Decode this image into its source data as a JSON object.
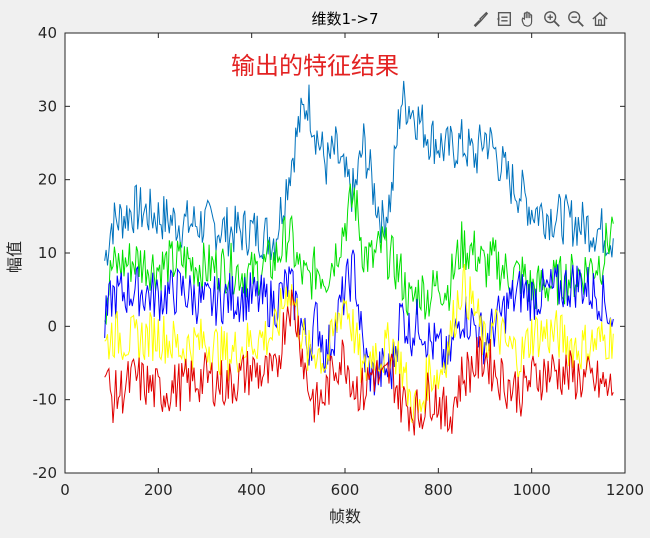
{
  "toolbar": {
    "icons": [
      "brush-icon",
      "data-tips-icon",
      "pan-icon",
      "zoom-in-icon",
      "zoom-out-icon",
      "home-icon"
    ]
  },
  "chart_data": {
    "type": "line",
    "title": "维数1->7",
    "annotation": "输出的特征结果",
    "xlabel": "帧数",
    "ylabel": "幅值",
    "xlim": [
      0,
      1200
    ],
    "ylim": [
      -20,
      40
    ],
    "xticks": [
      0,
      200,
      400,
      600,
      800,
      1000,
      1200
    ],
    "yticks": [
      -20,
      -10,
      0,
      10,
      20,
      30,
      40
    ],
    "grid": false,
    "legend": "none",
    "series": [
      {
        "color": "#0072bd",
        "x": [
          85,
          100,
          150,
          200,
          250,
          300,
          350,
          400,
          450,
          480,
          500,
          520,
          540,
          560,
          580,
          600,
          620,
          640,
          660,
          680,
          700,
          720,
          740,
          760,
          780,
          800,
          820,
          850,
          880,
          900,
          920,
          950,
          980,
          1000,
          1050,
          1100,
          1150,
          1175
        ],
        "y": [
          9,
          14,
          16,
          15,
          14,
          14,
          13,
          13,
          12,
          21,
          27,
          31,
          26,
          22,
          24,
          20,
          18,
          25,
          19,
          14,
          18,
          31,
          30,
          28,
          26,
          25,
          24,
          25,
          23,
          26,
          24,
          20,
          18,
          16,
          15,
          14,
          13,
          12
        ]
      },
      {
        "color": "#00e000",
        "x": [
          85,
          100,
          150,
          200,
          250,
          300,
          350,
          400,
          450,
          480,
          500,
          520,
          540,
          560,
          580,
          600,
          620,
          640,
          660,
          680,
          700,
          720,
          740,
          760,
          780,
          800,
          820,
          850,
          880,
          900,
          920,
          950,
          980,
          1000,
          1050,
          1100,
          1150,
          1175
        ],
        "y": [
          2,
          8,
          9,
          8,
          9,
          8,
          8,
          7,
          9,
          13,
          8,
          6,
          8,
          7,
          10,
          14,
          18,
          10,
          9,
          11,
          9,
          7,
          3,
          5,
          4,
          6,
          5,
          11,
          10,
          8,
          9,
          7,
          7,
          5,
          6,
          7,
          9,
          14
        ]
      },
      {
        "color": "#0000ff",
        "x": [
          85,
          100,
          150,
          200,
          250,
          300,
          350,
          400,
          450,
          480,
          500,
          520,
          540,
          560,
          580,
          600,
          620,
          640,
          660,
          680,
          700,
          720,
          740,
          760,
          780,
          800,
          820,
          850,
          880,
          900,
          920,
          950,
          980,
          1000,
          1050,
          1100,
          1150,
          1175
        ],
        "y": [
          0,
          4,
          5,
          4,
          5,
          3,
          4,
          4,
          3,
          6,
          2,
          -3,
          1,
          -4,
          0,
          5,
          8,
          -4,
          -7,
          -6,
          -6,
          2,
          -1,
          1,
          -2,
          -3,
          -5,
          2,
          0,
          -2,
          0,
          3,
          5,
          4,
          5,
          6,
          4,
          1
        ]
      },
      {
        "color": "#ffff00",
        "x": [
          85,
          100,
          150,
          200,
          250,
          300,
          350,
          400,
          450,
          480,
          500,
          520,
          540,
          560,
          580,
          600,
          620,
          640,
          660,
          680,
          700,
          720,
          740,
          760,
          780,
          800,
          820,
          850,
          880,
          900,
          920,
          950,
          980,
          1000,
          1050,
          1100,
          1150,
          1175
        ],
        "y": [
          -3,
          -1,
          -2,
          -1,
          -3,
          -2,
          -4,
          -2,
          -1,
          6,
          1,
          -4,
          -3,
          -5,
          0,
          4,
          -1,
          -7,
          -3,
          -4,
          -2,
          -5,
          -10,
          -12,
          -6,
          -7,
          -3,
          6,
          2,
          -3,
          0,
          -3,
          -4,
          -1,
          -1,
          -3,
          -2,
          -1
        ]
      },
      {
        "color": "#e00000",
        "x": [
          85,
          100,
          150,
          200,
          250,
          300,
          350,
          400,
          450,
          480,
          500,
          520,
          540,
          560,
          580,
          600,
          620,
          640,
          660,
          680,
          700,
          720,
          740,
          760,
          780,
          800,
          820,
          850,
          880,
          900,
          920,
          950,
          980,
          1000,
          1050,
          1100,
          1150,
          1175
        ],
        "y": [
          -6,
          -10,
          -7,
          -9,
          -8,
          -7,
          -8,
          -6,
          -7,
          4,
          0,
          -8,
          -11,
          -9,
          -5,
          -4,
          -8,
          -9,
          -6,
          -8,
          -6,
          -10,
          -11,
          -12,
          -9,
          -10,
          -13,
          -7,
          -5,
          -4,
          -6,
          -8,
          -9,
          -7,
          -6,
          -7,
          -8,
          -9
        ]
      }
    ]
  }
}
